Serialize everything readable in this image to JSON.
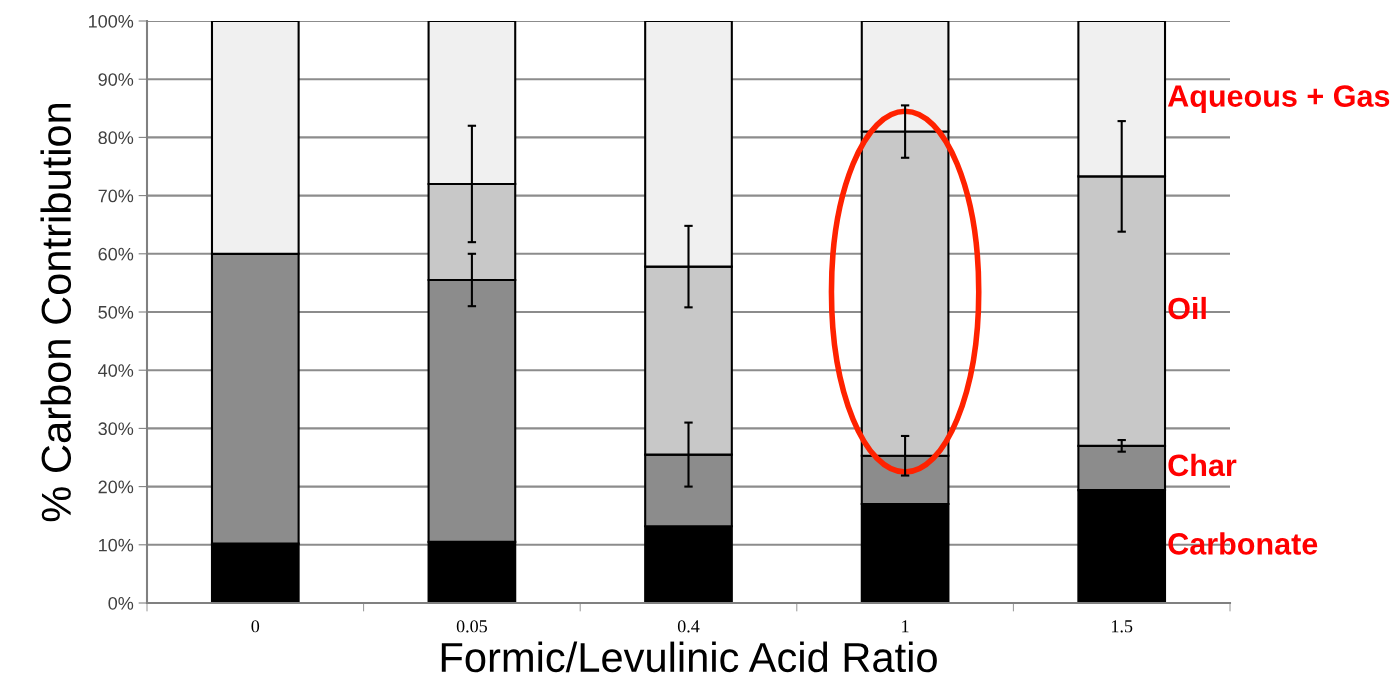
{
  "chart_data": {
    "type": "bar",
    "stacked": true,
    "xlabel": "Formic/Levulinic Acid Ratio",
    "ylabel": "% Carbon Contribution",
    "categories": [
      "0",
      "0.05",
      "0.4",
      "1",
      "1.5"
    ],
    "series": [
      {
        "name": "Carbonate",
        "color": "#000000",
        "values": [
          10.2,
          10.5,
          13.2,
          17,
          19.4
        ]
      },
      {
        "name": "Char",
        "color": "#8c8c8c",
        "values": [
          49.8,
          45,
          12.3,
          8.3,
          7.6
        ],
        "errors": [
          null,
          4.5,
          5.5,
          3.4,
          1
        ]
      },
      {
        "name": "Oil",
        "color": "#c8c8c8",
        "values": [
          0,
          16.5,
          32.3,
          55.7,
          46.3
        ],
        "errors": [
          null,
          10,
          7,
          4.5,
          9.5
        ]
      },
      {
        "name": "Aqueous + Gas",
        "color": "#f0f0f0",
        "values": [
          40,
          28,
          42.2,
          19,
          26.7
        ]
      }
    ],
    "ylim": [
      0,
      100
    ],
    "yticks": [
      {
        "value": 0,
        "label": "0%"
      },
      {
        "value": 10,
        "label": "10%"
      },
      {
        "value": 20,
        "label": "20%"
      },
      {
        "value": 30,
        "label": "30%"
      },
      {
        "value": 40,
        "label": "40%"
      },
      {
        "value": 50,
        "label": "50%"
      },
      {
        "value": 60,
        "label": "60%"
      },
      {
        "value": 70,
        "label": "70%"
      },
      {
        "value": 80,
        "label": "80%"
      },
      {
        "value": 90,
        "label": "90%"
      },
      {
        "value": 100,
        "label": "100%"
      }
    ],
    "grid": "y",
    "legend": false
  }
}
